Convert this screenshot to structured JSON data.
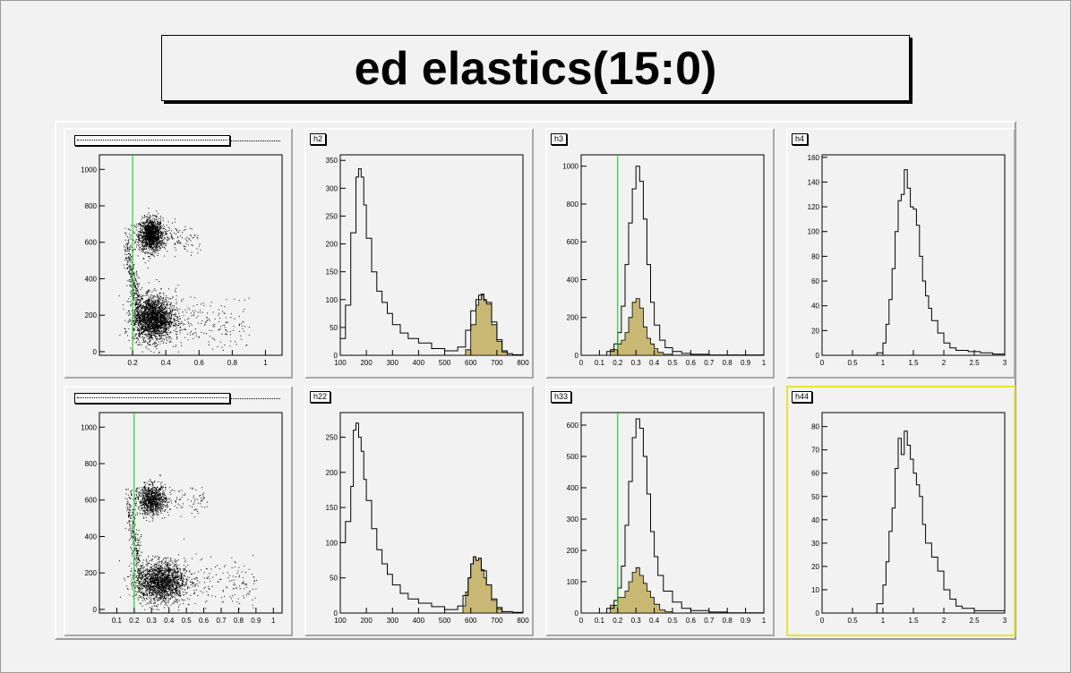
{
  "title": "ed elastics(15:0)",
  "colors": {
    "fill": "#c8b873",
    "cut": "#00cc00",
    "active": "#e8e436"
  },
  "pads": [
    {
      "id": "p1",
      "label": "",
      "kind": "scatter"
    },
    {
      "id": "p2",
      "label": "h2",
      "kind": "hist"
    },
    {
      "id": "p3",
      "label": "h3",
      "kind": "hist"
    },
    {
      "id": "p4",
      "label": "h4",
      "kind": "hist"
    },
    {
      "id": "p5",
      "label": "",
      "kind": "scatter"
    },
    {
      "id": "p6",
      "label": "h22",
      "kind": "hist"
    },
    {
      "id": "p7",
      "label": "h33",
      "kind": "hist"
    },
    {
      "id": "p8",
      "label": "h44",
      "kind": "hist",
      "active": true
    }
  ],
  "chart_data": [
    {
      "type": "scatter",
      "pad": "p1",
      "xlim": [
        0,
        1.1
      ],
      "ylim": [
        -20,
        1080
      ],
      "xticks": [
        {
          "v": 0.2,
          "t": "0.2"
        },
        {
          "v": 0.4,
          "t": "0.4"
        },
        {
          "v": 0.6,
          "t": "0.6"
        },
        {
          "v": 0.8,
          "t": "0.8"
        },
        {
          "v": 1,
          "t": "1"
        }
      ],
      "yticks": [
        {
          "v": 0,
          "t": "0"
        },
        {
          "v": 200,
          "t": "200"
        },
        {
          "v": 400,
          "t": "400"
        },
        {
          "v": 600,
          "t": "600"
        },
        {
          "v": 800,
          "t": "800"
        },
        {
          "v": 1000,
          "t": "1000"
        }
      ],
      "cut_x": 0.2,
      "clusters": [
        {
          "cx": 0.31,
          "cy": 640,
          "sx": 0.035,
          "sy": 45,
          "n": 1300
        },
        {
          "cx": 0.32,
          "cy": 180,
          "sx": 0.06,
          "sy": 60,
          "n": 2200
        }
      ],
      "bands": [
        {
          "x0": 0.2,
          "x1": 0.6,
          "y0": 640,
          "y1": 610,
          "spread": 40,
          "n": 200
        },
        {
          "x0": 0.2,
          "x1": 0.9,
          "y0": 200,
          "y1": 140,
          "spread": 70,
          "n": 300
        },
        {
          "x0": 0.16,
          "x1": 0.24,
          "y0": 600,
          "y1": 200,
          "spread": 60,
          "n": 300
        }
      ]
    },
    {
      "type": "bar",
      "pad": "p2",
      "xlim": [
        100,
        800
      ],
      "ylim": [
        0,
        360
      ],
      "xticks": [
        {
          "v": 100,
          "t": "100"
        },
        {
          "v": 200,
          "t": "200"
        },
        {
          "v": 300,
          "t": "300"
        },
        {
          "v": 400,
          "t": "400"
        },
        {
          "v": 500,
          "t": "500"
        },
        {
          "v": 600,
          "t": "600"
        },
        {
          "v": 700,
          "t": "700"
        },
        {
          "v": 800,
          "t": "800"
        }
      ],
      "yticks": [
        {
          "v": 0,
          "t": "0"
        },
        {
          "v": 50,
          "t": "50"
        },
        {
          "v": 100,
          "t": "100"
        },
        {
          "v": 150,
          "t": "150"
        },
        {
          "v": 200,
          "t": "200"
        },
        {
          "v": 250,
          "t": "250"
        },
        {
          "v": 300,
          "t": "300"
        },
        {
          "v": 350,
          "t": "350"
        }
      ],
      "outline": {
        "x": [
          100,
          120,
          140,
          160,
          170,
          180,
          190,
          200,
          220,
          240,
          260,
          280,
          300,
          330,
          360,
          400,
          450,
          500,
          550,
          580,
          600,
          620,
          630,
          640,
          650,
          660,
          680,
          700,
          720,
          740,
          760,
          800
        ],
        "y": [
          30,
          90,
          220,
          320,
          335,
          320,
          270,
          210,
          150,
          115,
          95,
          75,
          55,
          40,
          30,
          22,
          12,
          8,
          15,
          45,
          80,
          100,
          108,
          110,
          100,
          95,
          60,
          28,
          8,
          3,
          1,
          0
        ]
      },
      "filled": {
        "x": [
          560,
          580,
          600,
          620,
          630,
          640,
          650,
          660,
          680,
          700,
          720,
          740
        ],
        "y": [
          0,
          10,
          55,
          90,
          100,
          108,
          98,
          92,
          55,
          25,
          6,
          0
        ]
      }
    },
    {
      "type": "bar",
      "pad": "p3",
      "xlim": [
        0,
        1
      ],
      "ylim": [
        0,
        1060
      ],
      "xticks": [
        {
          "v": 0,
          "t": "0"
        },
        {
          "v": 0.1,
          "t": "0.1"
        },
        {
          "v": 0.2,
          "t": "0.2"
        },
        {
          "v": 0.3,
          "t": "0.3"
        },
        {
          "v": 0.4,
          "t": "0.4"
        },
        {
          "v": 0.5,
          "t": "0.5"
        },
        {
          "v": 0.6,
          "t": "0.6"
        },
        {
          "v": 0.7,
          "t": "0.7"
        },
        {
          "v": 0.8,
          "t": "0.8"
        },
        {
          "v": 0.9,
          "t": "0.9"
        },
        {
          "v": 1,
          "t": "1"
        }
      ],
      "yticks": [
        {
          "v": 0,
          "t": "0"
        },
        {
          "v": 200,
          "t": "200"
        },
        {
          "v": 400,
          "t": "400"
        },
        {
          "v": 600,
          "t": "600"
        },
        {
          "v": 800,
          "t": "800"
        },
        {
          "v": 1000,
          "t": "1000"
        }
      ],
      "cut_x": 0.2,
      "outline": {
        "x": [
          0.1,
          0.14,
          0.18,
          0.2,
          0.22,
          0.24,
          0.26,
          0.28,
          0.3,
          0.32,
          0.34,
          0.36,
          0.38,
          0.4,
          0.43,
          0.46,
          0.5,
          0.55,
          0.6,
          0.7,
          1.0
        ],
        "y": [
          0,
          20,
          60,
          120,
          260,
          480,
          700,
          880,
          1000,
          920,
          720,
          480,
          280,
          160,
          80,
          40,
          20,
          10,
          5,
          2,
          0
        ]
      },
      "filled": {
        "x": [
          0.12,
          0.16,
          0.2,
          0.22,
          0.24,
          0.26,
          0.28,
          0.3,
          0.32,
          0.34,
          0.36,
          0.38,
          0.4,
          0.42,
          0.45,
          0.5
        ],
        "y": [
          0,
          30,
          60,
          80,
          120,
          200,
          280,
          300,
          250,
          150,
          90,
          60,
          35,
          15,
          5,
          0
        ]
      }
    },
    {
      "type": "bar",
      "pad": "p4",
      "xlim": [
        0,
        3
      ],
      "ylim": [
        0,
        162
      ],
      "xticks": [
        {
          "v": 0,
          "t": "0"
        },
        {
          "v": 0.5,
          "t": "0.5"
        },
        {
          "v": 1,
          "t": "1"
        },
        {
          "v": 1.5,
          "t": "1.5"
        },
        {
          "v": 2,
          "t": "2"
        },
        {
          "v": 2.5,
          "t": "2.5"
        },
        {
          "v": 3,
          "t": "3"
        }
      ],
      "yticks": [
        {
          "v": 0,
          "t": "0"
        },
        {
          "v": 20,
          "t": "20"
        },
        {
          "v": 40,
          "t": "40"
        },
        {
          "v": 60,
          "t": "60"
        },
        {
          "v": 80,
          "t": "80"
        },
        {
          "v": 100,
          "t": "100"
        },
        {
          "v": 120,
          "t": "120"
        },
        {
          "v": 140,
          "t": "140"
        },
        {
          "v": 160,
          "t": "160"
        }
      ],
      "outline": {
        "x": [
          0.8,
          0.9,
          1.0,
          1.05,
          1.1,
          1.15,
          1.2,
          1.25,
          1.3,
          1.35,
          1.4,
          1.45,
          1.5,
          1.55,
          1.6,
          1.65,
          1.7,
          1.75,
          1.8,
          1.9,
          2.0,
          2.1,
          2.2,
          2.4,
          2.6,
          2.8,
          3.0
        ],
        "y": [
          0,
          2,
          10,
          25,
          45,
          70,
          100,
          125,
          130,
          150,
          135,
          120,
          118,
          105,
          80,
          60,
          48,
          38,
          28,
          18,
          10,
          6,
          4,
          3,
          2,
          1,
          0
        ]
      }
    },
    {
      "type": "scatter",
      "pad": "p5",
      "xlim": [
        0,
        1.05
      ],
      "ylim": [
        -20,
        1080
      ],
      "xticks": [
        {
          "v": 0.1,
          "t": "0.1"
        },
        {
          "v": 0.2,
          "t": "0.2"
        },
        {
          "v": 0.3,
          "t": "0.3"
        },
        {
          "v": 0.4,
          "t": "0.4"
        },
        {
          "v": 0.5,
          "t": "0.5"
        },
        {
          "v": 0.6,
          "t": "0.6"
        },
        {
          "v": 0.7,
          "t": "0.7"
        },
        {
          "v": 0.8,
          "t": "0.8"
        },
        {
          "v": 0.9,
          "t": "0.9"
        },
        {
          "v": 1,
          "t": "1"
        }
      ],
      "yticks": [
        {
          "v": 0,
          "t": "0"
        },
        {
          "v": 200,
          "t": "200"
        },
        {
          "v": 400,
          "t": "400"
        },
        {
          "v": 600,
          "t": "600"
        },
        {
          "v": 800,
          "t": "800"
        },
        {
          "v": 1000,
          "t": "1000"
        }
      ],
      "cut_x": 0.2,
      "clusters": [
        {
          "cx": 0.3,
          "cy": 600,
          "sx": 0.04,
          "sy": 40,
          "n": 900
        },
        {
          "cx": 0.35,
          "cy": 150,
          "sx": 0.07,
          "sy": 55,
          "n": 1800
        }
      ],
      "bands": [
        {
          "x0": 0.2,
          "x1": 0.6,
          "y0": 600,
          "y1": 590,
          "spread": 40,
          "n": 150
        },
        {
          "x0": 0.2,
          "x1": 0.9,
          "y0": 170,
          "y1": 130,
          "spread": 70,
          "n": 260
        },
        {
          "x0": 0.16,
          "x1": 0.24,
          "y0": 580,
          "y1": 180,
          "spread": 60,
          "n": 250
        }
      ]
    },
    {
      "type": "bar",
      "pad": "p6",
      "xlim": [
        100,
        800
      ],
      "ylim": [
        0,
        285
      ],
      "xticks": [
        {
          "v": 100,
          "t": "100"
        },
        {
          "v": 200,
          "t": "200"
        },
        {
          "v": 300,
          "t": "300"
        },
        {
          "v": 400,
          "t": "400"
        },
        {
          "v": 500,
          "t": "500"
        },
        {
          "v": 600,
          "t": "600"
        },
        {
          "v": 700,
          "t": "700"
        },
        {
          "v": 800,
          "t": "800"
        }
      ],
      "yticks": [
        {
          "v": 0,
          "t": "0"
        },
        {
          "v": 50,
          "t": "50"
        },
        {
          "v": 100,
          "t": "100"
        },
        {
          "v": 150,
          "t": "150"
        },
        {
          "v": 200,
          "t": "200"
        },
        {
          "v": 250,
          "t": "250"
        }
      ],
      "outline": {
        "x": [
          100,
          120,
          140,
          150,
          160,
          170,
          180,
          190,
          200,
          220,
          240,
          260,
          280,
          300,
          330,
          360,
          400,
          450,
          500,
          550,
          570,
          590,
          600,
          610,
          620,
          630,
          640,
          660,
          680,
          700,
          720,
          760,
          800
        ],
        "y": [
          100,
          130,
          180,
          260,
          270,
          250,
          230,
          190,
          160,
          120,
          90,
          70,
          55,
          40,
          28,
          20,
          14,
          9,
          5,
          10,
          25,
          50,
          70,
          80,
          75,
          78,
          60,
          40,
          20,
          8,
          2,
          1,
          0
        ]
      },
      "filled": {
        "x": [
          560,
          570,
          580,
          590,
          600,
          610,
          620,
          630,
          640,
          650,
          660,
          680,
          700,
          720
        ],
        "y": [
          0,
          10,
          30,
          50,
          70,
          80,
          75,
          78,
          62,
          50,
          40,
          18,
          6,
          0
        ]
      }
    },
    {
      "type": "bar",
      "pad": "p7",
      "xlim": [
        0,
        1
      ],
      "ylim": [
        0,
        640
      ],
      "xticks": [
        {
          "v": 0,
          "t": "0"
        },
        {
          "v": 0.1,
          "t": "0.1"
        },
        {
          "v": 0.2,
          "t": "0.2"
        },
        {
          "v": 0.3,
          "t": "0.3"
        },
        {
          "v": 0.4,
          "t": "0.4"
        },
        {
          "v": 0.5,
          "t": "0.5"
        },
        {
          "v": 0.6,
          "t": "0.6"
        },
        {
          "v": 0.7,
          "t": "0.7"
        },
        {
          "v": 0.8,
          "t": "0.8"
        },
        {
          "v": 0.9,
          "t": "0.9"
        },
        {
          "v": 1,
          "t": "1"
        }
      ],
      "yticks": [
        {
          "v": 0,
          "t": "0"
        },
        {
          "v": 100,
          "t": "100"
        },
        {
          "v": 200,
          "t": "200"
        },
        {
          "v": 300,
          "t": "300"
        },
        {
          "v": 400,
          "t": "400"
        },
        {
          "v": 500,
          "t": "500"
        },
        {
          "v": 600,
          "t": "600"
        }
      ],
      "cut_x": 0.2,
      "outline": {
        "x": [
          0.1,
          0.14,
          0.18,
          0.2,
          0.22,
          0.24,
          0.26,
          0.28,
          0.3,
          0.32,
          0.34,
          0.36,
          0.38,
          0.4,
          0.42,
          0.45,
          0.5,
          0.55,
          0.6,
          0.7,
          0.8,
          1.0
        ],
        "y": [
          0,
          15,
          40,
          80,
          150,
          280,
          420,
          560,
          620,
          590,
          500,
          380,
          260,
          180,
          120,
          70,
          35,
          15,
          8,
          3,
          1,
          0
        ]
      },
      "filled": {
        "x": [
          0.12,
          0.16,
          0.2,
          0.22,
          0.24,
          0.26,
          0.28,
          0.3,
          0.32,
          0.34,
          0.36,
          0.38,
          0.4,
          0.43,
          0.46,
          0.5
        ],
        "y": [
          0,
          25,
          50,
          50,
          70,
          100,
          130,
          145,
          120,
          95,
          70,
          50,
          28,
          10,
          4,
          0
        ]
      }
    },
    {
      "type": "bar",
      "pad": "p8",
      "xlim": [
        0,
        3
      ],
      "ylim": [
        0,
        86
      ],
      "xticks": [
        {
          "v": 0,
          "t": "0"
        },
        {
          "v": 0.5,
          "t": "0.5"
        },
        {
          "v": 1,
          "t": "1"
        },
        {
          "v": 1.5,
          "t": "1.5"
        },
        {
          "v": 2,
          "t": "2"
        },
        {
          "v": 2.5,
          "t": "2.5"
        },
        {
          "v": 3,
          "t": "3"
        }
      ],
      "yticks": [
        {
          "v": 0,
          "t": "0"
        },
        {
          "v": 10,
          "t": "10"
        },
        {
          "v": 20,
          "t": "20"
        },
        {
          "v": 30,
          "t": "30"
        },
        {
          "v": 40,
          "t": "40"
        },
        {
          "v": 50,
          "t": "50"
        },
        {
          "v": 60,
          "t": "60"
        },
        {
          "v": 70,
          "t": "70"
        },
        {
          "v": 80,
          "t": "80"
        }
      ],
      "outline": {
        "x": [
          0.8,
          0.9,
          1.0,
          1.05,
          1.1,
          1.15,
          1.2,
          1.25,
          1.3,
          1.35,
          1.4,
          1.45,
          1.5,
          1.55,
          1.6,
          1.65,
          1.7,
          1.8,
          1.9,
          2.0,
          2.1,
          2.2,
          2.3,
          2.5,
          2.8,
          3.0
        ],
        "y": [
          0,
          4,
          12,
          22,
          35,
          45,
          62,
          75,
          68,
          78,
          72,
          66,
          60,
          55,
          50,
          38,
          30,
          24,
          18,
          10,
          6,
          3,
          2,
          1,
          1,
          0
        ]
      }
    }
  ]
}
